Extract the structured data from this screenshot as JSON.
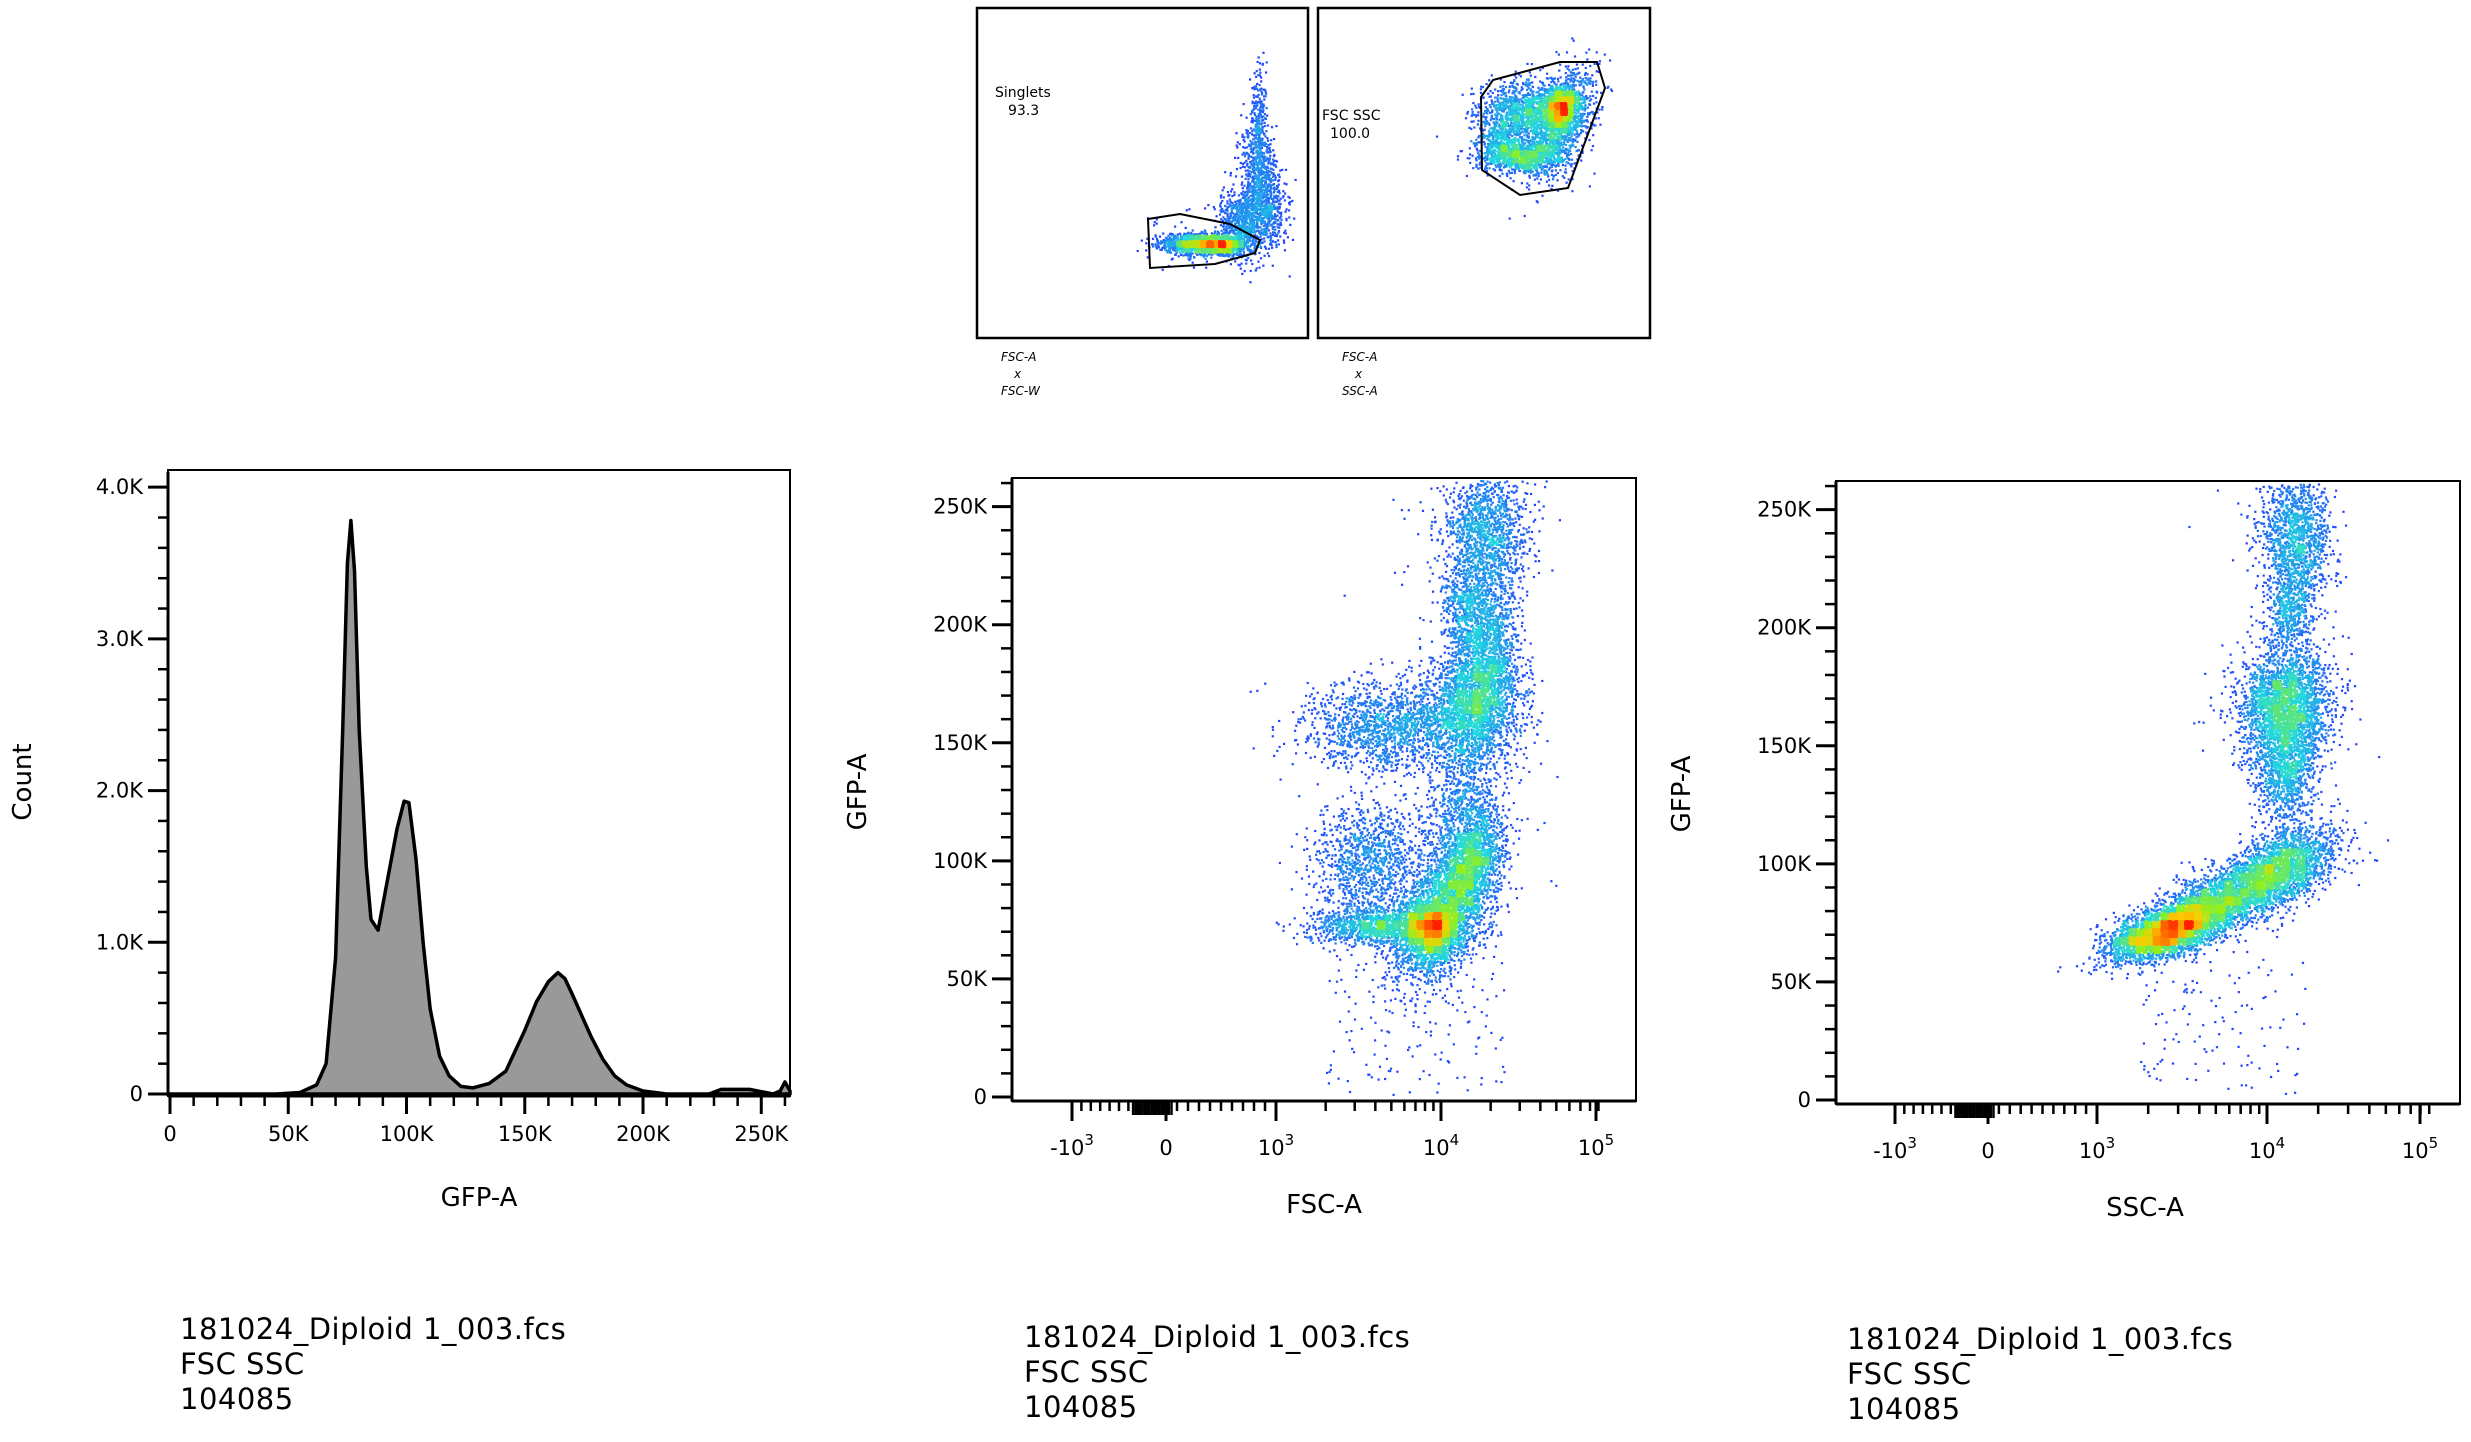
{
  "chart_data": [
    {
      "type": "scatter",
      "name": "singlets-gate",
      "subtype": "density-plot-thumbnail",
      "x_param": "FSC-A",
      "y_param": "FSC-W",
      "axis_caption": [
        "FSC-A",
        "x",
        "FSC-W"
      ],
      "gate": {
        "label": "Singlets",
        "value": "93.3"
      }
    },
    {
      "type": "scatter",
      "name": "fsc-ssc-gate",
      "subtype": "density-plot-thumbnail",
      "x_param": "FSC-A",
      "y_param": "SSC-A",
      "axis_caption": [
        "FSC-A",
        "x",
        "SSC-A"
      ],
      "gate": {
        "label": "FSC SSC",
        "value": "100.0"
      }
    },
    {
      "type": "area",
      "name": "gfp-histogram",
      "xlabel": "GFP-A",
      "ylabel": "Count",
      "xlim": [
        0,
        262144
      ],
      "ylim": [
        0,
        4100
      ],
      "xticks": [
        {
          "value": 0,
          "label": "0"
        },
        {
          "value": 50000,
          "label": "50K"
        },
        {
          "value": 100000,
          "label": "100K"
        },
        {
          "value": 150000,
          "label": "150K"
        },
        {
          "value": 200000,
          "label": "200K"
        },
        {
          "value": 250000,
          "label": "250K"
        }
      ],
      "yticks": [
        {
          "value": 0,
          "label": "0"
        },
        {
          "value": 1000,
          "label": "1.0K"
        },
        {
          "value": 2000,
          "label": "2.0K"
        },
        {
          "value": 3000,
          "label": "3.0K"
        },
        {
          "value": 4000,
          "label": "4.0K"
        }
      ],
      "x": [
        0,
        20000,
        45000,
        55000,
        62000,
        66000,
        70000,
        73000,
        75000,
        76500,
        78000,
        80000,
        83000,
        85000,
        88000,
        90000,
        93000,
        96000,
        99000,
        101000,
        104000,
        107000,
        110000,
        114000,
        118000,
        123000,
        128000,
        135000,
        142000,
        150000,
        155000,
        160000,
        164000,
        167000,
        170000,
        174000,
        178000,
        183000,
        188000,
        193000,
        200000,
        210000,
        228000,
        233000,
        245000,
        255000,
        258000,
        260000,
        262144
      ],
      "values": [
        0,
        0,
        0,
        10,
        60,
        200,
        900,
        2400,
        3500,
        3780,
        3450,
        2400,
        1500,
        1150,
        1080,
        1250,
        1500,
        1750,
        1930,
        1920,
        1550,
        1000,
        560,
        250,
        120,
        50,
        40,
        70,
        150,
        420,
        610,
        740,
        800,
        760,
        660,
        520,
        380,
        230,
        120,
        60,
        20,
        0,
        0,
        30,
        30,
        0,
        20,
        80,
        20
      ]
    },
    {
      "type": "scatter",
      "name": "gfp-vs-fsc",
      "xlabel": "FSC-A",
      "ylabel": "GFP-A",
      "x_scale": "biexponential",
      "ylim": [
        0,
        262144
      ],
      "xticks": [
        "-10^3",
        "0",
        "10^3",
        "10^4",
        "10^5"
      ],
      "yticks": [
        {
          "value": 0,
          "label": "0"
        },
        {
          "value": 50000,
          "label": "50K"
        },
        {
          "value": 100000,
          "label": "100K"
        },
        {
          "value": 150000,
          "label": "150K"
        },
        {
          "value": 200000,
          "label": "200K"
        },
        {
          "value": 250000,
          "label": "250K"
        }
      ],
      "clusters": [
        {
          "x": 12000,
          "y": 82000,
          "count": 5200
        },
        {
          "x": 5500,
          "y": 72000,
          "count": 1700
        },
        {
          "x": 18000,
          "y": 165000,
          "count": 3400
        },
        {
          "x": 6500,
          "y": 162000,
          "count": 1800
        },
        {
          "x": 22000,
          "y": 235000,
          "count": 1500
        }
      ]
    },
    {
      "type": "scatter",
      "name": "gfp-vs-ssc",
      "xlabel": "SSC-A",
      "ylabel": "GFP-A",
      "x_scale": "biexponential",
      "ylim": [
        0,
        262144
      ],
      "xticks": [
        "-10^3",
        "0",
        "10^3",
        "10^4",
        "10^5"
      ],
      "yticks": [
        {
          "value": 0,
          "label": "0"
        },
        {
          "value": 50000,
          "label": "50K"
        },
        {
          "value": 100000,
          "label": "100K"
        },
        {
          "value": 150000,
          "label": "150K"
        },
        {
          "value": 200000,
          "label": "200K"
        },
        {
          "value": 250000,
          "label": "250K"
        }
      ],
      "clusters": [
        {
          "x": 3500,
          "y": 75000,
          "count": 3600
        },
        {
          "x": 7500,
          "y": 88000,
          "count": 3000
        },
        {
          "x": 14000,
          "y": 100000,
          "count": 2200
        },
        {
          "x": 16000,
          "y": 165000,
          "count": 3200
        },
        {
          "x": 20000,
          "y": 235000,
          "count": 1500
        }
      ]
    }
  ],
  "captions": [
    {
      "file": "181024_Diploid 1_003.fcs",
      "gate": "FSC SSC",
      "count": "104085"
    },
    {
      "file": "181024_Diploid 1_003.fcs",
      "gate": "FSC SSC",
      "count": "104085"
    },
    {
      "file": "181024_Diploid 1_003.fcs",
      "gate": "FSC SSC",
      "count": "104085"
    }
  ],
  "colors": {
    "histogram_fill": "#999999",
    "density_low": "#2233ff",
    "density_mid": "#20d8e0",
    "density_midhigh": "#90f020",
    "density_high": "#ffcc00",
    "density_peak": "#ff2000"
  }
}
